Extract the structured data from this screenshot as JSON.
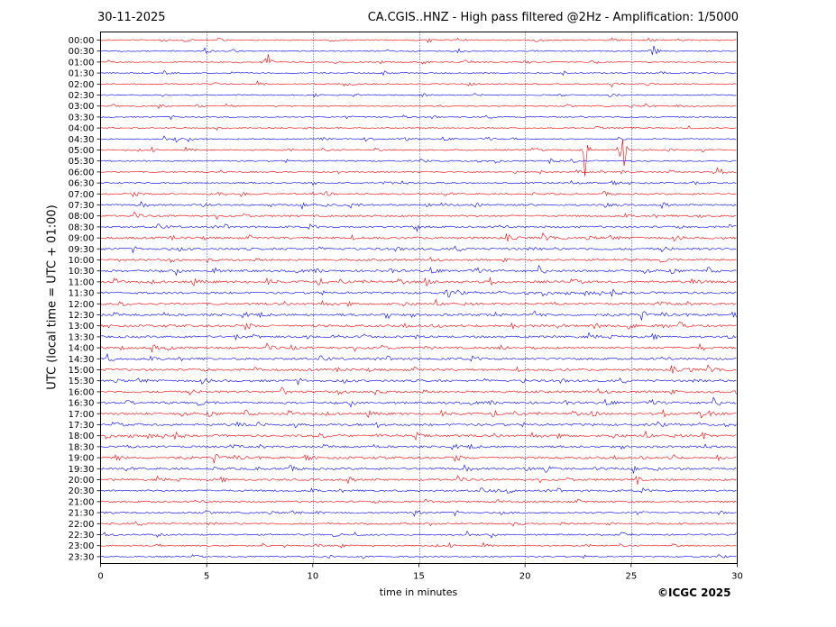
{
  "header": {
    "date": "30-11-2025",
    "title": "CA.CGIS..HNZ - High pass filtered @2Hz - Amplification: 1/5000"
  },
  "footer": {
    "copyright": "©ICGC 2025"
  },
  "colors": {
    "trace_a": "#ff0000",
    "trace_b": "#0000ff",
    "grid": "#000080",
    "axes": "#000000"
  },
  "chart_data": {
    "type": "line",
    "title": "CA.CGIS..HNZ - High pass filtered @2Hz - Amplification: 1/5000",
    "xlabel": "time in minutes",
    "ylabel": "UTC (local time = UTC + 01:00)",
    "xlim": [
      0,
      30
    ],
    "x_ticks": [
      "0",
      "5",
      "10",
      "15",
      "20",
      "25",
      "30"
    ],
    "vertical_gridlines_minutes": [
      5,
      10,
      15,
      20,
      25
    ],
    "grid": "vertical dotted",
    "row_color_order": [
      "trace_a",
      "trace_b"
    ],
    "row_labels": [
      "00:00",
      "00:30",
      "01:00",
      "01:30",
      "02:00",
      "02:30",
      "03:00",
      "03:30",
      "04:00",
      "04:30",
      "05:00",
      "05:30",
      "06:00",
      "06:30",
      "07:00",
      "07:30",
      "08:00",
      "08:30",
      "09:00",
      "09:30",
      "10:00",
      "10:30",
      "11:00",
      "11:30",
      "12:00",
      "12:30",
      "13:00",
      "13:30",
      "14:00",
      "14:30",
      "15:00",
      "15:30",
      "16:00",
      "16:30",
      "17:00",
      "17:30",
      "18:00",
      "18:30",
      "19:00",
      "19:30",
      "20:00",
      "20:30",
      "21:00",
      "21:30",
      "22:00",
      "22:30",
      "23:00",
      "23:30"
    ],
    "row_noise_level": [
      0.2,
      0.2,
      0.2,
      0.2,
      0.2,
      0.2,
      0.2,
      0.2,
      0.2,
      0.2,
      0.3,
      0.3,
      0.3,
      0.4,
      0.4,
      0.5,
      0.6,
      0.7,
      0.8,
      0.8,
      0.6,
      0.8,
      0.9,
      0.8,
      0.7,
      0.8,
      0.9,
      0.8,
      0.8,
      0.8,
      0.8,
      0.8,
      0.8,
      0.8,
      0.8,
      0.8,
      0.8,
      0.7,
      0.8,
      0.7,
      0.6,
      0.6,
      0.6,
      0.5,
      0.5,
      0.4,
      0.3,
      0.3
    ],
    "events": [
      {
        "row": "00:30",
        "minute": 26.1,
        "amplitude": 1.3
      },
      {
        "row": "01:00",
        "minute": 7.9,
        "amplitude": 1.6
      },
      {
        "row": "02:00",
        "minute": 5.4,
        "amplitude": 0.4
      },
      {
        "row": "04:30",
        "minute": 3.6,
        "amplitude": 0.6
      },
      {
        "row": "05:00",
        "minute": 22.8,
        "amplitude": 5.5
      },
      {
        "row": "05:00",
        "minute": 24.6,
        "amplitude": 6.0
      },
      {
        "row": "06:00",
        "minute": 29.0,
        "amplitude": 1.0
      },
      {
        "row": "08:00",
        "minute": 28.3,
        "amplitude": 0.6
      },
      {
        "row": "08:30",
        "minute": 14.9,
        "amplitude": 0.6
      },
      {
        "row": "10:30",
        "minute": 5.4,
        "amplitude": 0.6
      },
      {
        "row": "11:30",
        "minute": 16.4,
        "amplitude": 0.7
      },
      {
        "row": "12:30",
        "minute": 13.5,
        "amplitude": 1.0
      },
      {
        "row": "13:30",
        "minute": 14.9,
        "amplitude": 0.6
      },
      {
        "row": "14:00",
        "minute": 28.3,
        "amplitude": 0.8
      },
      {
        "row": "15:00",
        "minute": 27.8,
        "amplitude": 0.5
      },
      {
        "row": "15:30",
        "minute": 20.0,
        "amplitude": 0.4
      },
      {
        "row": "16:00",
        "minute": 30.0,
        "amplitude": 0.4
      },
      {
        "row": "17:00",
        "minute": 28.3,
        "amplitude": 0.6
      },
      {
        "row": "18:00",
        "minute": 28.4,
        "amplitude": 0.7
      },
      {
        "row": "19:00",
        "minute": 27.0,
        "amplitude": 0.6
      },
      {
        "row": "20:00",
        "minute": 25.3,
        "amplitude": 0.6
      }
    ]
  }
}
